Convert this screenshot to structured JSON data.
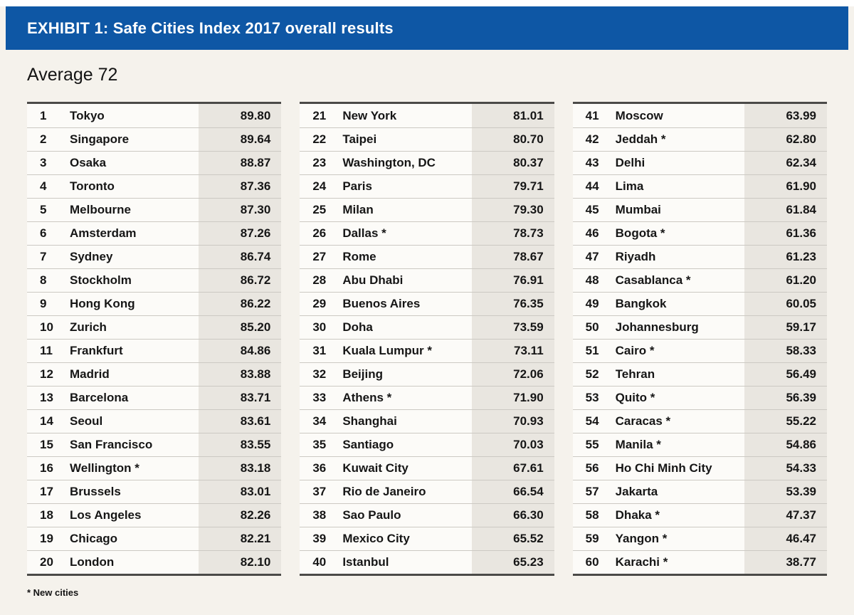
{
  "page": {
    "exhibit_title": "EXHIBIT 1: Safe Cities Index 2017 overall results",
    "average_note": "Average 72",
    "footnote": "* New cities"
  },
  "colors": {
    "header_blue": "#0e57a5",
    "background_cream": "#f5f2ec",
    "row_white": "#fcfbf8",
    "score_column_gray": "#e9e6e0",
    "row_separator": "#ccc9c3",
    "table_border": "#4b4a48",
    "title_text": "#ffffff",
    "body_text": "#161616"
  },
  "chart_data": {
    "type": "table",
    "title": "EXHIBIT 1: Safe Cities Index 2017 overall results",
    "subtitle": "Average 72",
    "average": 72,
    "footnote": "* New cities",
    "columns": [
      "rank",
      "city",
      "score"
    ],
    "layout": "three side-by-side sub-tables of 20 rows each; score column shaded gray; asterisk marks new cities",
    "rows_per_column": 20,
    "rows": [
      [
        "1",
        "Tokyo",
        "89.80"
      ],
      [
        "2",
        "Singapore",
        "89.64"
      ],
      [
        "3",
        "Osaka",
        "88.87"
      ],
      [
        "4",
        "Toronto",
        "87.36"
      ],
      [
        "5",
        "Melbourne",
        "87.30"
      ],
      [
        "6",
        "Amsterdam",
        "87.26"
      ],
      [
        "7",
        "Sydney",
        "86.74"
      ],
      [
        "8",
        "Stockholm",
        "86.72"
      ],
      [
        "9",
        "Hong Kong",
        "86.22"
      ],
      [
        "10",
        "Zurich",
        "85.20"
      ],
      [
        "11",
        "Frankfurt",
        "84.86"
      ],
      [
        "12",
        "Madrid",
        "83.88"
      ],
      [
        "13",
        "Barcelona",
        "83.71"
      ],
      [
        "14",
        "Seoul",
        "83.61"
      ],
      [
        "15",
        "San Francisco",
        "83.55"
      ],
      [
        "16",
        "Wellington *",
        "83.18"
      ],
      [
        "17",
        "Brussels",
        "83.01"
      ],
      [
        "18",
        "Los Angeles",
        "82.26"
      ],
      [
        "19",
        "Chicago",
        "82.21"
      ],
      [
        "20",
        "London",
        "82.10"
      ],
      [
        "21",
        "New York",
        "81.01"
      ],
      [
        "22",
        "Taipei",
        "80.70"
      ],
      [
        "23",
        "Washington, DC",
        "80.37"
      ],
      [
        "24",
        "Paris",
        "79.71"
      ],
      [
        "25",
        "Milan",
        "79.30"
      ],
      [
        "26",
        "Dallas *",
        "78.73"
      ],
      [
        "27",
        "Rome",
        "78.67"
      ],
      [
        "28",
        "Abu Dhabi",
        "76.91"
      ],
      [
        "29",
        "Buenos Aires",
        "76.35"
      ],
      [
        "30",
        "Doha",
        "73.59"
      ],
      [
        "31",
        "Kuala Lumpur *",
        "73.11"
      ],
      [
        "32",
        "Beijing",
        "72.06"
      ],
      [
        "33",
        "Athens *",
        "71.90"
      ],
      [
        "34",
        "Shanghai",
        "70.93"
      ],
      [
        "35",
        "Santiago",
        "70.03"
      ],
      [
        "36",
        "Kuwait City",
        "67.61"
      ],
      [
        "37",
        "Rio de Janeiro",
        "66.54"
      ],
      [
        "38",
        "Sao Paulo",
        "66.30"
      ],
      [
        "39",
        "Mexico City",
        "65.52"
      ],
      [
        "40",
        "Istanbul",
        "65.23"
      ],
      [
        "41",
        "Moscow",
        "63.99"
      ],
      [
        "42",
        "Jeddah *",
        "62.80"
      ],
      [
        "43",
        "Delhi",
        "62.34"
      ],
      [
        "44",
        "Lima",
        "61.90"
      ],
      [
        "45",
        "Mumbai",
        "61.84"
      ],
      [
        "46",
        "Bogota *",
        "61.36"
      ],
      [
        "47",
        "Riyadh",
        "61.23"
      ],
      [
        "48",
        "Casablanca *",
        "61.20"
      ],
      [
        "49",
        "Bangkok",
        "60.05"
      ],
      [
        "50",
        "Johannesburg",
        "59.17"
      ],
      [
        "51",
        "Cairo *",
        "58.33"
      ],
      [
        "52",
        "Tehran",
        "56.49"
      ],
      [
        "53",
        "Quito *",
        "56.39"
      ],
      [
        "54",
        "Caracas *",
        "55.22"
      ],
      [
        "55",
        "Manila *",
        "54.86"
      ],
      [
        "56",
        "Ho Chi Minh City",
        "54.33"
      ],
      [
        "57",
        "Jakarta",
        "53.39"
      ],
      [
        "58",
        "Dhaka *",
        "47.37"
      ],
      [
        "59",
        "Yangon *",
        "46.47"
      ],
      [
        "60",
        "Karachi *",
        "38.77"
      ]
    ]
  }
}
